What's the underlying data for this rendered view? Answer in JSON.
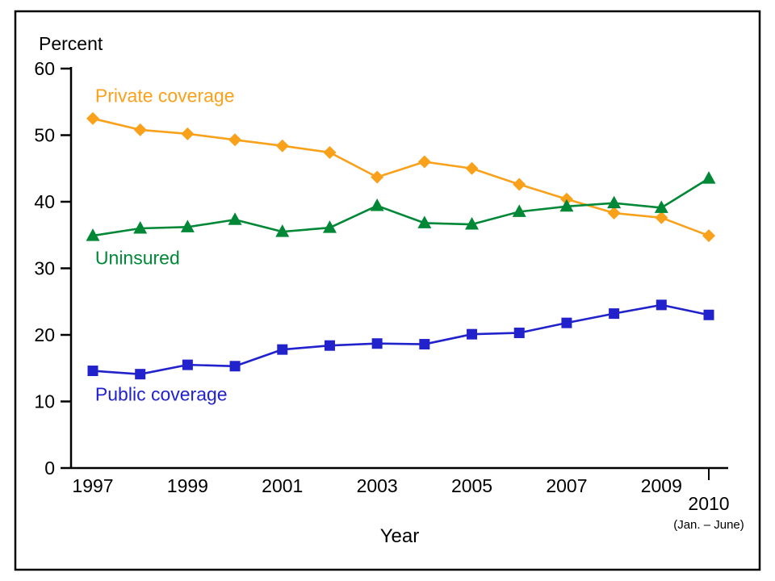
{
  "chart_data": {
    "type": "line",
    "title": "",
    "ylabel": "Percent",
    "xlabel": "Year",
    "ylim": [
      0,
      60
    ],
    "yticks": [
      0,
      10,
      20,
      30,
      40,
      50,
      60
    ],
    "grid": false,
    "legend_position": "inline-labels",
    "x": [
      1997,
      1998,
      1999,
      2000,
      2001,
      2002,
      2003,
      2004,
      2005,
      2006,
      2007,
      2008,
      2009,
      2010
    ],
    "xticks": [
      {
        "year": 1997,
        "label": "1997"
      },
      {
        "year": 1999,
        "label": "1999"
      },
      {
        "year": 2001,
        "label": "2001"
      },
      {
        "year": 2003,
        "label": "2003"
      },
      {
        "year": 2005,
        "label": "2005"
      },
      {
        "year": 2007,
        "label": "2007"
      },
      {
        "year": 2009,
        "label": "2009"
      },
      {
        "year": 2010,
        "label": "2010",
        "note": "(Jan. – June)",
        "tick": true
      }
    ],
    "series": [
      {
        "name": "Private coverage",
        "color": "#F9A11B",
        "marker": "diamond",
        "values": [
          52.5,
          50.8,
          50.2,
          49.3,
          48.4,
          47.4,
          43.7,
          46.0,
          45.0,
          42.6,
          40.4,
          38.3,
          37.6,
          34.9
        ],
        "label_at": {
          "x": 1997.05,
          "y": 55.0
        }
      },
      {
        "name": "Uninsured",
        "color": "#008837",
        "marker": "triangle",
        "values": [
          34.9,
          36.0,
          36.2,
          37.3,
          35.5,
          36.1,
          39.4,
          36.8,
          36.6,
          38.5,
          39.3,
          39.8,
          39.1,
          43.5
        ],
        "label_at": {
          "x": 1997.05,
          "y": 30.6
        }
      },
      {
        "name": "Public coverage",
        "color": "#2222CC",
        "marker": "square",
        "values": [
          14.6,
          14.1,
          15.5,
          15.3,
          17.8,
          18.4,
          18.7,
          18.6,
          20.1,
          20.3,
          21.8,
          23.2,
          24.5,
          23.0
        ],
        "label_at": {
          "x": 1997.05,
          "y": 10.1
        }
      }
    ]
  }
}
